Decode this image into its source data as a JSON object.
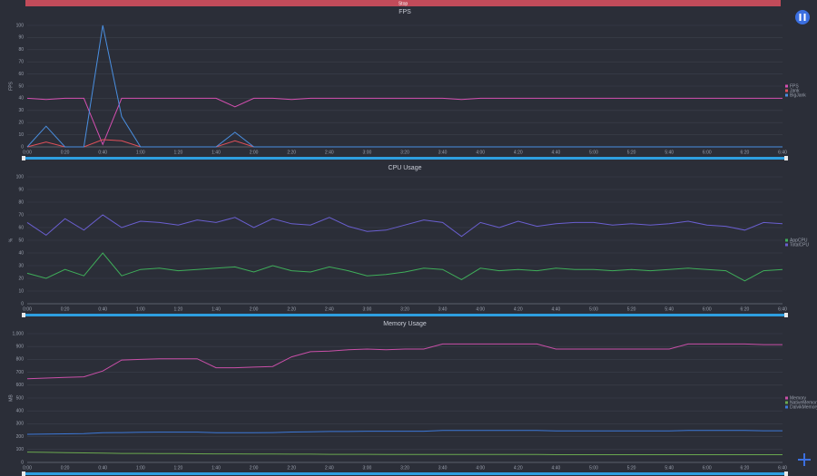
{
  "header": {
    "title": "Stop"
  },
  "chart_data": [
    {
      "type": "line",
      "title": "FPS",
      "ylabel": "FPS",
      "categories": [
        "0:00",
        null,
        "0:20",
        null,
        "0:40",
        null,
        "1:00",
        null,
        "1:20",
        null,
        "1:40",
        null,
        "2:00",
        null,
        "2:20",
        null,
        "2:40",
        null,
        "3:00",
        null,
        "3:20",
        null,
        "3:40",
        null,
        "4:00",
        null,
        "4:20",
        null,
        "4:40",
        null,
        "5:00",
        null,
        "5:20",
        null,
        "5:40",
        null,
        "6:00",
        null,
        "6:20",
        null,
        "6:40"
      ],
      "ylim": [
        0,
        100
      ],
      "yticks": [
        0,
        10,
        20,
        30,
        40,
        50,
        60,
        70,
        80,
        90,
        100
      ],
      "grid": true,
      "series": [
        {
          "name": "FPS",
          "color": "#d44fb0",
          "values": [
            40,
            39,
            40,
            40,
            2,
            40,
            40,
            40,
            40,
            40,
            40,
            33,
            40,
            40,
            39,
            40,
            40,
            40,
            40,
            40,
            40,
            40,
            40,
            39,
            40,
            40,
            40,
            40,
            40,
            40,
            40,
            40,
            40,
            40,
            40,
            40,
            40,
            40,
            40,
            40,
            40
          ]
        },
        {
          "name": "Jank",
          "color": "#e0505a",
          "values": [
            0,
            4,
            0,
            0,
            6,
            5,
            0,
            0,
            0,
            0,
            0,
            5,
            0,
            0,
            0,
            0,
            0,
            0,
            0,
            0,
            0,
            0,
            0,
            0,
            0,
            0,
            0,
            0,
            0,
            0,
            0,
            0,
            0,
            0,
            0,
            0,
            0,
            0,
            0,
            0,
            0
          ]
        },
        {
          "name": "BigJank",
          "color": "#4a8fe0",
          "values": [
            0,
            17,
            0,
            0,
            100,
            25,
            0,
            0,
            0,
            0,
            0,
            12,
            0,
            0,
            0,
            0,
            0,
            0,
            0,
            0,
            0,
            0,
            0,
            0,
            0,
            0,
            0,
            0,
            0,
            0,
            0,
            0,
            0,
            0,
            0,
            0,
            0,
            0,
            0,
            0,
            0
          ]
        }
      ]
    },
    {
      "type": "line",
      "title": "CPU Usage",
      "ylabel": "%",
      "categories": [
        "0:00",
        null,
        "0:20",
        null,
        "0:40",
        null,
        "1:00",
        null,
        "1:20",
        null,
        "1:40",
        null,
        "2:00",
        null,
        "2:20",
        null,
        "2:40",
        null,
        "3:00",
        null,
        "3:20",
        null,
        "3:40",
        null,
        "4:00",
        null,
        "4:20",
        null,
        "4:40",
        null,
        "5:00",
        null,
        "5:20",
        null,
        "5:40",
        null,
        "6:00",
        null,
        "6:20",
        null,
        "6:40"
      ],
      "ylim": [
        0,
        100
      ],
      "yticks": [
        0,
        10,
        20,
        30,
        40,
        50,
        60,
        70,
        80,
        90,
        100
      ],
      "grid": true,
      "series": [
        {
          "name": "AppCPU",
          "color": "#3fae5a",
          "values": [
            24,
            20,
            27,
            22,
            40,
            22,
            27,
            28,
            26,
            27,
            28,
            29,
            25,
            30,
            26,
            25,
            29,
            26,
            22,
            23,
            25,
            28,
            27,
            19,
            28,
            26,
            27,
            26,
            28,
            27,
            27,
            26,
            27,
            26,
            27,
            28,
            27,
            26,
            18,
            26,
            27
          ]
        },
        {
          "name": "TotalCPU",
          "color": "#6a5fd0",
          "values": [
            64,
            54,
            67,
            58,
            70,
            60,
            65,
            64,
            62,
            66,
            64,
            68,
            60,
            67,
            63,
            62,
            68,
            61,
            57,
            58,
            62,
            66,
            64,
            53,
            64,
            60,
            65,
            61,
            63,
            64,
            64,
            62,
            63,
            62,
            63,
            65,
            62,
            61,
            58,
            64,
            63
          ]
        }
      ]
    },
    {
      "type": "line",
      "title": "Memory Usage",
      "ylabel": "MB",
      "categories": [
        "0:00",
        null,
        "0:20",
        null,
        "0:40",
        null,
        "1:00",
        null,
        "1:20",
        null,
        "1:40",
        null,
        "2:00",
        null,
        "2:20",
        null,
        "2:40",
        null,
        "3:00",
        null,
        "3:20",
        null,
        "3:40",
        null,
        "4:00",
        null,
        "4:20",
        null,
        "4:40",
        null,
        "5:00",
        null,
        "5:20",
        null,
        "5:40",
        null,
        "6:00",
        null,
        "6:20",
        null,
        "6:40"
      ],
      "ylim": [
        0,
        1000
      ],
      "yticks": [
        0,
        100,
        200,
        300,
        400,
        500,
        600,
        700,
        800,
        900,
        {
          "value": 1000,
          "label": "1,000"
        }
      ],
      "grid": true,
      "series": [
        {
          "name": "Memory",
          "color": "#c94fa8",
          "values": [
            650,
            655,
            660,
            665,
            710,
            795,
            800,
            805,
            805,
            805,
            735,
            735,
            740,
            745,
            820,
            860,
            865,
            875,
            880,
            875,
            880,
            880,
            920,
            920,
            920,
            920,
            920,
            920,
            880,
            880,
            880,
            880,
            880,
            880,
            880,
            920,
            920,
            920,
            920,
            915,
            915
          ]
        },
        {
          "name": "NativeMemory",
          "color": "#6aa84f",
          "values": [
            80,
            78,
            76,
            74,
            72,
            70,
            70,
            68,
            68,
            67,
            66,
            66,
            65,
            65,
            64,
            64,
            63,
            63,
            63,
            62,
            62,
            62,
            62,
            61,
            61,
            61,
            61,
            61,
            60,
            60,
            60,
            60,
            60,
            60,
            60,
            60,
            60,
            60,
            60,
            60,
            60
          ]
        },
        {
          "name": "DalvikMemory",
          "color": "#3c78d8",
          "values": [
            218,
            220,
            222,
            224,
            230,
            232,
            234,
            235,
            235,
            235,
            230,
            230,
            230,
            232,
            236,
            238,
            240,
            240,
            242,
            242,
            242,
            242,
            248,
            248,
            248,
            248,
            248,
            248,
            245,
            245,
            245,
            245,
            245,
            245,
            245,
            248,
            248,
            248,
            248,
            246,
            246
          ]
        }
      ]
    }
  ]
}
